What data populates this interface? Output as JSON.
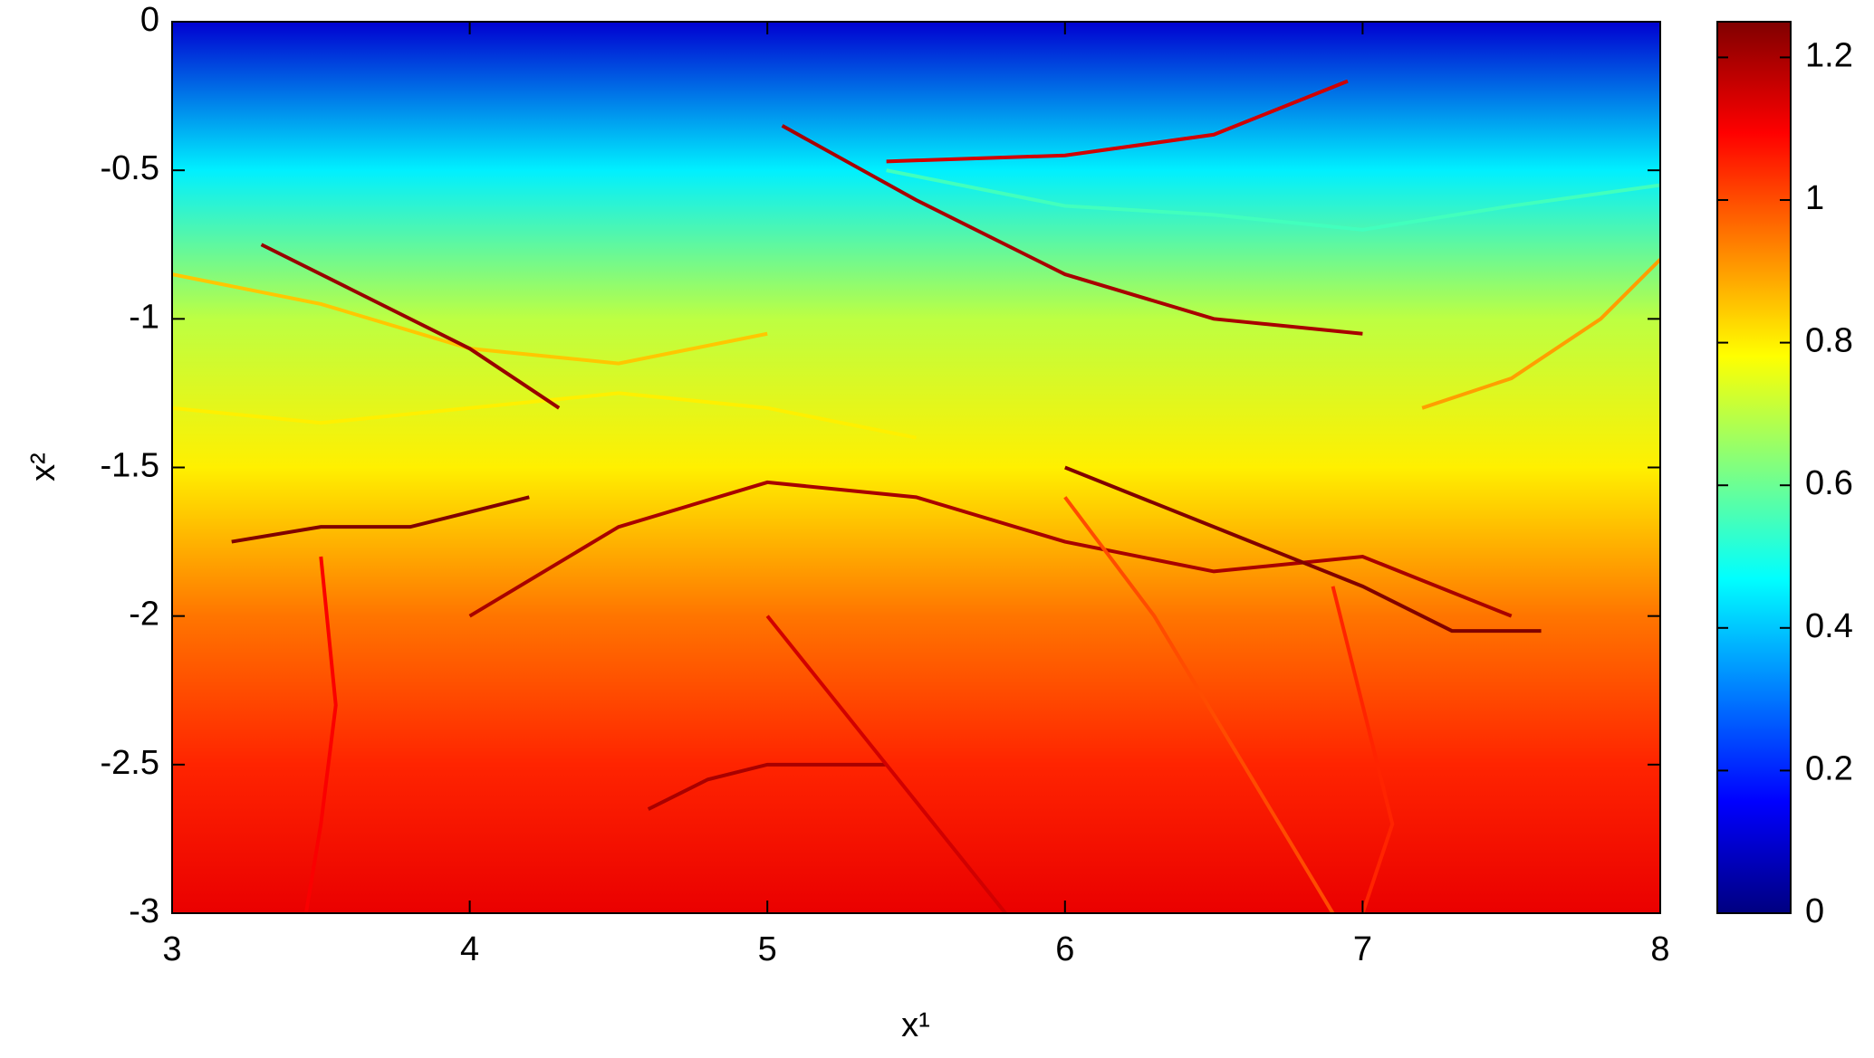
{
  "chart_data": {
    "type": "line",
    "x_label": "x¹",
    "y_label": "x²",
    "xlim": [
      3,
      8
    ],
    "ylim": [
      -3,
      0
    ],
    "xticks": [
      3,
      4,
      5,
      6,
      7,
      8
    ],
    "yticks": [
      -3,
      -2.5,
      -2,
      -1.5,
      -1,
      -0.5,
      0
    ],
    "clim": [
      0,
      1.25
    ],
    "cticks": [
      0,
      0.2,
      0.4,
      0.6,
      0.8,
      1,
      1.2
    ],
    "background_field": {
      "y": [
        0,
        -0.5,
        -1,
        -1.5,
        -2,
        -2.5,
        -3
      ],
      "values": [
        0.1,
        0.45,
        0.7,
        0.8,
        0.95,
        1.05,
        1.12
      ]
    },
    "series": [
      {
        "x": [
          3.0,
          3.5,
          4.0,
          4.5,
          5.0
        ],
        "values": [
          -0.85,
          -0.95,
          -1.1,
          -1.15,
          -1.05
        ],
        "color_value": 0.85
      },
      {
        "x": [
          3.0,
          3.5,
          4.0,
          4.5,
          5.0,
          5.5
        ],
        "values": [
          -1.3,
          -1.35,
          -1.3,
          -1.25,
          -1.3,
          -1.4
        ],
        "color_value": 0.8
      },
      {
        "x": [
          5.05,
          5.5,
          6.0,
          6.5,
          7.0
        ],
        "values": [
          -0.35,
          -0.6,
          -0.85,
          -1.0,
          -1.05
        ],
        "color_value": 1.2
      },
      {
        "x": [
          5.4,
          6.0,
          6.5,
          6.95
        ],
        "values": [
          -0.47,
          -0.45,
          -0.38,
          -0.2
        ],
        "color_value": 1.15
      },
      {
        "x": [
          5.4,
          6.0,
          6.5,
          7.0,
          7.5,
          8.0
        ],
        "values": [
          -0.5,
          -0.62,
          -0.65,
          -0.7,
          -0.62,
          -0.55
        ],
        "color_value": 0.55
      },
      {
        "x": [
          3.3,
          3.6,
          4.0,
          4.3
        ],
        "values": [
          -0.75,
          -0.9,
          -1.1,
          -1.3
        ],
        "color_value": 1.22
      },
      {
        "x": [
          3.2,
          3.5,
          3.8,
          4.2
        ],
        "values": [
          -1.75,
          -1.7,
          -1.7,
          -1.6
        ],
        "color_value": 1.25
      },
      {
        "x": [
          4.0,
          4.5,
          5.0,
          5.5,
          6.0,
          6.5,
          7.0,
          7.5
        ],
        "values": [
          -2.0,
          -1.7,
          -1.55,
          -1.6,
          -1.75,
          -1.85,
          -1.8,
          -2.0
        ],
        "color_value": 1.2
      },
      {
        "x": [
          6.0,
          6.5,
          7.0,
          7.3,
          7.6
        ],
        "values": [
          -1.5,
          -1.7,
          -1.9,
          -2.05,
          -2.05
        ],
        "color_value": 1.25
      },
      {
        "x": [
          4.6,
          4.8,
          5.0,
          5.4
        ],
        "values": [
          -2.65,
          -2.55,
          -2.5,
          -2.5
        ],
        "color_value": 1.2
      },
      {
        "x": [
          3.5,
          3.55,
          3.5,
          3.45
        ],
        "values": [
          -1.8,
          -2.3,
          -2.7,
          -3.0
        ],
        "color_value": 1.1
      },
      {
        "x": [
          6.9,
          7.0,
          7.1,
          7.0
        ],
        "values": [
          -1.9,
          -2.3,
          -2.7,
          -3.0
        ],
        "color_value": 1.05
      },
      {
        "x": [
          5.0,
          5.4,
          5.8
        ],
        "values": [
          -2.0,
          -2.5,
          -3.0
        ],
        "color_value": 1.15
      },
      {
        "x": [
          6.0,
          6.3,
          6.6,
          6.9
        ],
        "values": [
          -1.6,
          -2.0,
          -2.5,
          -3.0
        ],
        "color_value": 1.0
      },
      {
        "x": [
          7.2,
          7.5,
          7.8,
          8.0
        ],
        "values": [
          -1.3,
          -1.2,
          -1.0,
          -0.8
        ],
        "color_value": 0.9
      }
    ]
  }
}
